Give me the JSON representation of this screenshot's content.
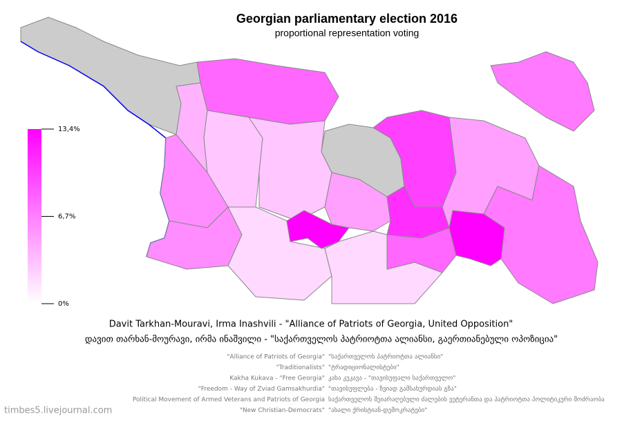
{
  "title": "Georgian parliamentary election 2016",
  "subtitle": "proportional representation voting",
  "legend": {
    "ticks": [
      {
        "value": 13.4,
        "label": "13,4%"
      },
      {
        "value": 6.7,
        "label": "6,7%"
      },
      {
        "value": 0,
        "label": "0%"
      }
    ],
    "min_color": "#ffffff",
    "max_color": "#ff00ff",
    "no_data_color": "#cccccc"
  },
  "map": {
    "values": [
      4,
      8,
      3,
      3,
      6,
      6,
      2,
      13.4,
      5,
      10,
      11,
      2,
      8,
      13.4,
      5,
      7,
      7
    ]
  },
  "caption_en": "Davit Tarkhan-Mouravi, Irma Inashvili - \"Alliance of Patriots of Georgia, United Opposition\"",
  "caption_ge": "დავით თარხან-მოურავი, ირმა ინაშვილი - \"საქართველოს პატრიოტთა ალიანსი, გაერთიანებული ოპოზიცია\"",
  "parties": [
    {
      "en": "\"Alliance of Patriots of Georgia\"",
      "ge": "\"საქართველოს პატრიოტთა ალიანსი\""
    },
    {
      "en": "\"Traditionalists\"",
      "ge": "\"ტრადიციონალისტები\""
    },
    {
      "en": "Kakha Kukava - \"Free Georgia\"",
      "ge": "კახა კუკავა - \"თავისუფალი საქართველო\""
    },
    {
      "en": "\"Freedom - Way of Zviad Gamsakhurdia\"",
      "ge": "\"თავისუფლება - ზვიად გამსახურდიას გზა\""
    },
    {
      "en": "Political Movement of Armed Veterans and Patriots of Georgia",
      "ge": "საქართველოს შეიარაღებული ძალების ვეტერანთა და პატრიოტთა პოლიტიკური მოძრაობა"
    },
    {
      "en": "\"New Christian-Democrats\"",
      "ge": "\"ახალი ქრისტიან-დემოკრატები\""
    }
  ],
  "watermark": "timbes5.livejournal.com"
}
